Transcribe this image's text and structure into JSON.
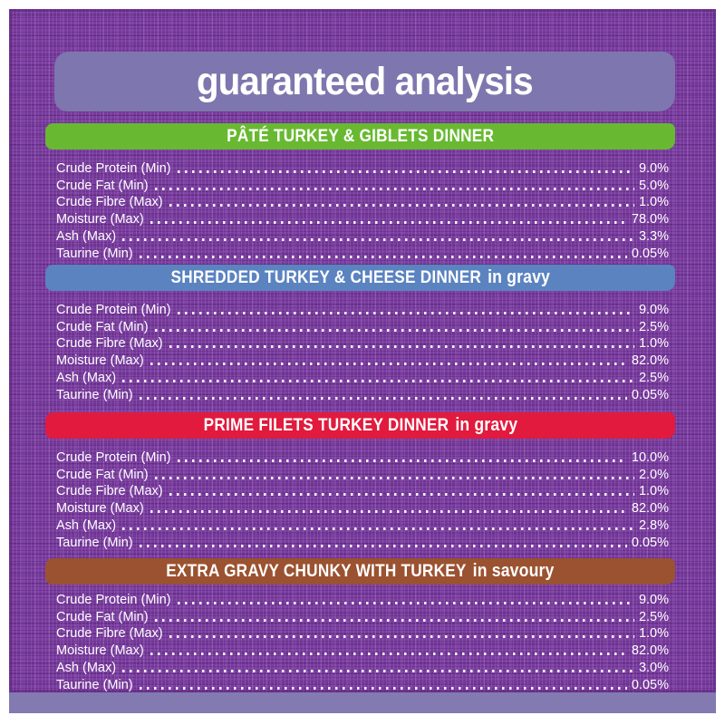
{
  "page": {
    "title": "guaranteed analysis"
  },
  "colors": {
    "fabric_purple": "#7b3da1",
    "banner_lavender": "#7e76ae",
    "bottom_strip_lavender": "#837ab1",
    "text_white": "#ffffff",
    "section_green": "#68b931",
    "section_blue": "#5b83c0",
    "section_red": "#e11a3e",
    "section_brown": "#9b5230"
  },
  "sections": [
    {
      "name": "PÂTÉ TURKEY & GIBLETS DINNER",
      "suffix": "",
      "color": "#68b931",
      "rows": [
        {
          "label": "Crude Protein (Min)",
          "value": "9.0%"
        },
        {
          "label": "Crude Fat (Min)",
          "value": "5.0%"
        },
        {
          "label": "Crude Fibre (Max)",
          "value": "1.0%"
        },
        {
          "label": "Moisture (Max)",
          "value": "78.0%"
        },
        {
          "label": "Ash (Max)",
          "value": "3.3%"
        },
        {
          "label": "Taurine (Min)",
          "value": "0.05%"
        }
      ]
    },
    {
      "name": "SHREDDED TURKEY & CHEESE DINNER",
      "suffix": "in gravy",
      "color": "#5b83c0",
      "rows": [
        {
          "label": "Crude Protein (Min)",
          "value": "9.0%"
        },
        {
          "label": "Crude Fat (Min)",
          "value": "2.5%"
        },
        {
          "label": "Crude Fibre (Max)",
          "value": "1.0%"
        },
        {
          "label": "Moisture (Max)",
          "value": "82.0%"
        },
        {
          "label": "Ash (Max)",
          "value": "2.5%"
        },
        {
          "label": "Taurine (Min)",
          "value": "0.05%"
        }
      ]
    },
    {
      "name": "PRIME FILETS TURKEY DINNER",
      "suffix": "in gravy",
      "color": "#e11a3e",
      "rows": [
        {
          "label": "Crude Protein (Min)",
          "value": "10.0%"
        },
        {
          "label": "Crude Fat (Min)",
          "value": "2.0%"
        },
        {
          "label": "Crude Fibre (Max)",
          "value": "1.0%"
        },
        {
          "label": "Moisture (Max)",
          "value": "82.0%"
        },
        {
          "label": "Ash (Max)",
          "value": "2.8%"
        },
        {
          "label": "Taurine (Min)",
          "value": "0.05%"
        }
      ]
    },
    {
      "name": "EXTRA GRAVY CHUNKY WITH TURKEY",
      "suffix": "in savoury",
      "color": "#9b5230",
      "rows": [
        {
          "label": "Crude Protein (Min)",
          "value": "9.0%"
        },
        {
          "label": "Crude Fat (Min)",
          "value": "2.5%"
        },
        {
          "label": "Crude Fibre (Max)",
          "value": "1.0%"
        },
        {
          "label": "Moisture (Max)",
          "value": "82.0%"
        },
        {
          "label": "Ash (Max)",
          "value": "3.0%"
        },
        {
          "label": "Taurine (Min)",
          "value": "0.05%"
        }
      ]
    }
  ]
}
